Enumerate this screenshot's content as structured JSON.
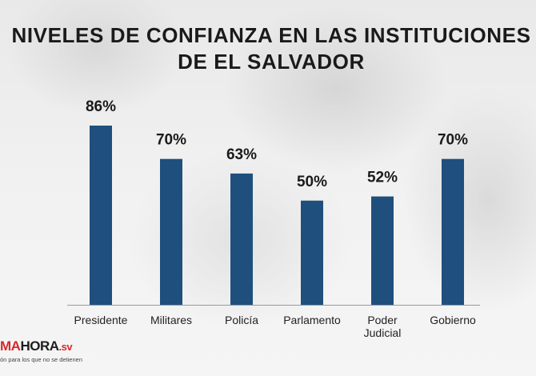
{
  "title_lines": [
    "NIVELES DE CONFIANZA EN LAS INSTITUCIONES",
    "DE EL SALVADOR"
  ],
  "logo": {
    "part1": "MA",
    "part2": "HORA",
    "suffix": ".sv",
    "tagline": "ón para los que no se detienen"
  },
  "colors": {
    "bar": "#1f4f7d",
    "axis": "#9a9a9a",
    "label": "#222222",
    "value": "#1a1a1a"
  },
  "chart_data": {
    "type": "bar",
    "title": "NIVELES DE CONFIANZA EN LAS INSTITUCIONES DE EL SALVADOR",
    "categories": [
      "Presidente",
      "Militares",
      "Policía",
      "Parlamento",
      "Poder Judicial",
      "Gobierno"
    ],
    "values": [
      86,
      70,
      63,
      50,
      52,
      70
    ],
    "value_labels": [
      "86%",
      "70%",
      "63%",
      "50%",
      "52%",
      "70%"
    ],
    "unit": "%",
    "ylim": [
      0,
      100
    ],
    "grid": false,
    "legend": "none"
  }
}
